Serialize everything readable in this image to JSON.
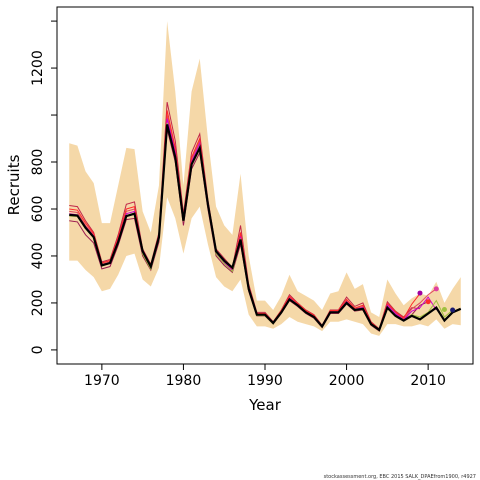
{
  "chart_data": {
    "type": "line",
    "xlabel": "Year",
    "ylabel": "Recruits",
    "xticks": [
      1970,
      1980,
      1990,
      2000,
      2010
    ],
    "yticks": [
      0,
      200,
      400,
      600,
      800,
      1200
    ],
    "xlim": [
      1964.5,
      2015.5
    ],
    "ylim": [
      -60,
      1460
    ],
    "grid": false,
    "colors": {
      "band": "#f5d8a8",
      "main": "#000000",
      "retro": [
        "#c0284a",
        "#9b1a4f",
        "#e04a60",
        "#ff2a2a",
        "#cc00cc",
        "#a0c040",
        "#1a1a70"
      ]
    },
    "band": {
      "years": [
        1966,
        1967,
        1968,
        1969,
        1970,
        1971,
        1972,
        1973,
        1974,
        1975,
        1976,
        1977,
        1978,
        1979,
        1980,
        1981,
        1982,
        1983,
        1984,
        1985,
        1986,
        1987,
        1988,
        1989,
        1990,
        1991,
        1992,
        1993,
        1994,
        1995,
        1996,
        1997,
        1998,
        1999,
        2000,
        2001,
        2002,
        2003,
        2004,
        2005,
        2006,
        2007,
        2008,
        2009,
        2010,
        2011,
        2012,
        2013,
        2014
      ],
      "lower": [
        380,
        380,
        340,
        310,
        250,
        260,
        320,
        400,
        410,
        300,
        270,
        350,
        650,
        560,
        410,
        560,
        610,
        450,
        310,
        270,
        250,
        300,
        150,
        100,
        100,
        90,
        110,
        140,
        120,
        110,
        100,
        80,
        120,
        120,
        130,
        120,
        110,
        70,
        60,
        110,
        110,
        100,
        100,
        110,
        100,
        130,
        90,
        110,
        105
      ],
      "upper": [
        880,
        870,
        760,
        710,
        540,
        540,
        700,
        860,
        855,
        590,
        500,
        700,
        1400,
        1100,
        700,
        1100,
        1240,
        900,
        610,
        530,
        490,
        750,
        400,
        210,
        210,
        170,
        230,
        320,
        250,
        230,
        210,
        170,
        240,
        250,
        330,
        260,
        280,
        160,
        140,
        300,
        240,
        190,
        220,
        240,
        230,
        290,
        200,
        260,
        310
      ]
    },
    "series": [
      {
        "values": [
          575,
          572,
          520,
          480,
          360,
          370,
          460,
          570,
          580,
          420,
          355,
          480,
          960,
          820,
          550,
          790,
          860,
          620,
          420,
          380,
          350,
          470,
          260,
          150,
          150,
          115,
          160,
          215,
          190,
          160,
          140,
          100,
          160,
          160,
          200,
          170,
          175,
          110,
          85,
          180,
          145,
          125,
          145,
          130,
          155,
          180,
          125,
          160,
          175
        ]
      },
      {
        "values": [
          615,
          610,
          550,
          500,
          375,
          385,
          490,
          620,
          630,
          430,
          365,
          500,
          1055,
          890,
          580,
          840,
          920,
          640,
          430,
          390,
          350,
          530,
          280,
          160,
          160,
          120,
          170,
          235,
          200,
          170,
          150,
          105,
          170,
          170,
          225,
          185,
          200,
          120,
          90,
          205,
          165,
          140,
          180,
          175
        ]
      },
      {
        "values": [
          550,
          545,
          490,
          455,
          345,
          355,
          445,
          555,
          560,
          400,
          340,
          460,
          940,
          800,
          530,
          770,
          840,
          600,
          400,
          360,
          330,
          450,
          250,
          145,
          145,
          110,
          155,
          210,
          185,
          155,
          135,
          95,
          155,
          155,
          195,
          165,
          170,
          105,
          80,
          175,
          150,
          130,
          150,
          190,
          205
        ]
      },
      {
        "values": [
          590,
          585,
          530,
          490,
          365,
          375,
          475,
          590,
          600,
          415,
          350,
          485,
          1000,
          850,
          560,
          810,
          890,
          625,
          415,
          375,
          340,
          490,
          265,
          150,
          150,
          115,
          165,
          225,
          195,
          165,
          145,
          100,
          165,
          165,
          210,
          175,
          185,
          115,
          85,
          195,
          160,
          130,
          175,
          200,
          235,
          260
        ]
      },
      {
        "values": [
          600,
          595,
          540,
          495,
          370,
          380,
          480,
          600,
          610,
          420,
          355,
          490,
          1020,
          860,
          565,
          820,
          900,
          630,
          420,
          380,
          345,
          500,
          270,
          155,
          155,
          118,
          168,
          228,
          198,
          168,
          148,
          102,
          168,
          168,
          215,
          178,
          190,
          118,
          88,
          198,
          162,
          135,
          195,
          240
        ]
      },
      {
        "values": [
          580,
          575,
          525,
          485,
          362,
          372,
          468,
          580,
          590,
          412,
          348,
          480,
          985,
          840,
          555,
          800,
          880,
          620,
          412,
          372,
          338,
          482,
          262,
          148,
          148,
          112,
          162,
          220,
          192,
          162,
          142,
          98,
          162,
          162,
          205,
          172,
          180,
          112,
          84,
          190,
          155,
          128,
          165,
          180,
          225,
          170
        ]
      },
      {
        "values": [
          570,
          568,
          518,
          478,
          358,
          368,
          458,
          568,
          578,
          408,
          344,
          474,
          965,
          825,
          548,
          792,
          865,
          612,
          408,
          368,
          334,
          474,
          258,
          146,
          146,
          110,
          158,
          214,
          188,
          158,
          138,
          96,
          158,
          158,
          198,
          168,
          172,
          108,
          82,
          182,
          148,
          124,
          150,
          140,
          160,
          210,
          140,
          170
        ]
      }
    ],
    "endpoints": [
      {
        "year": 2010,
        "value": 205,
        "color": "#ff2a2a"
      },
      {
        "year": 2009,
        "value": 242,
        "color": "#a000a0"
      },
      {
        "year": 2011,
        "value": 260,
        "color": "#e040a0"
      },
      {
        "year": 2012,
        "value": 172,
        "color": "#a0c040"
      },
      {
        "year": 2013,
        "value": 170,
        "color": "#1a1a70"
      }
    ]
  },
  "footer": "stockassessment.org, EBC 2015 SALK_DPAEfrom1900, r4927"
}
